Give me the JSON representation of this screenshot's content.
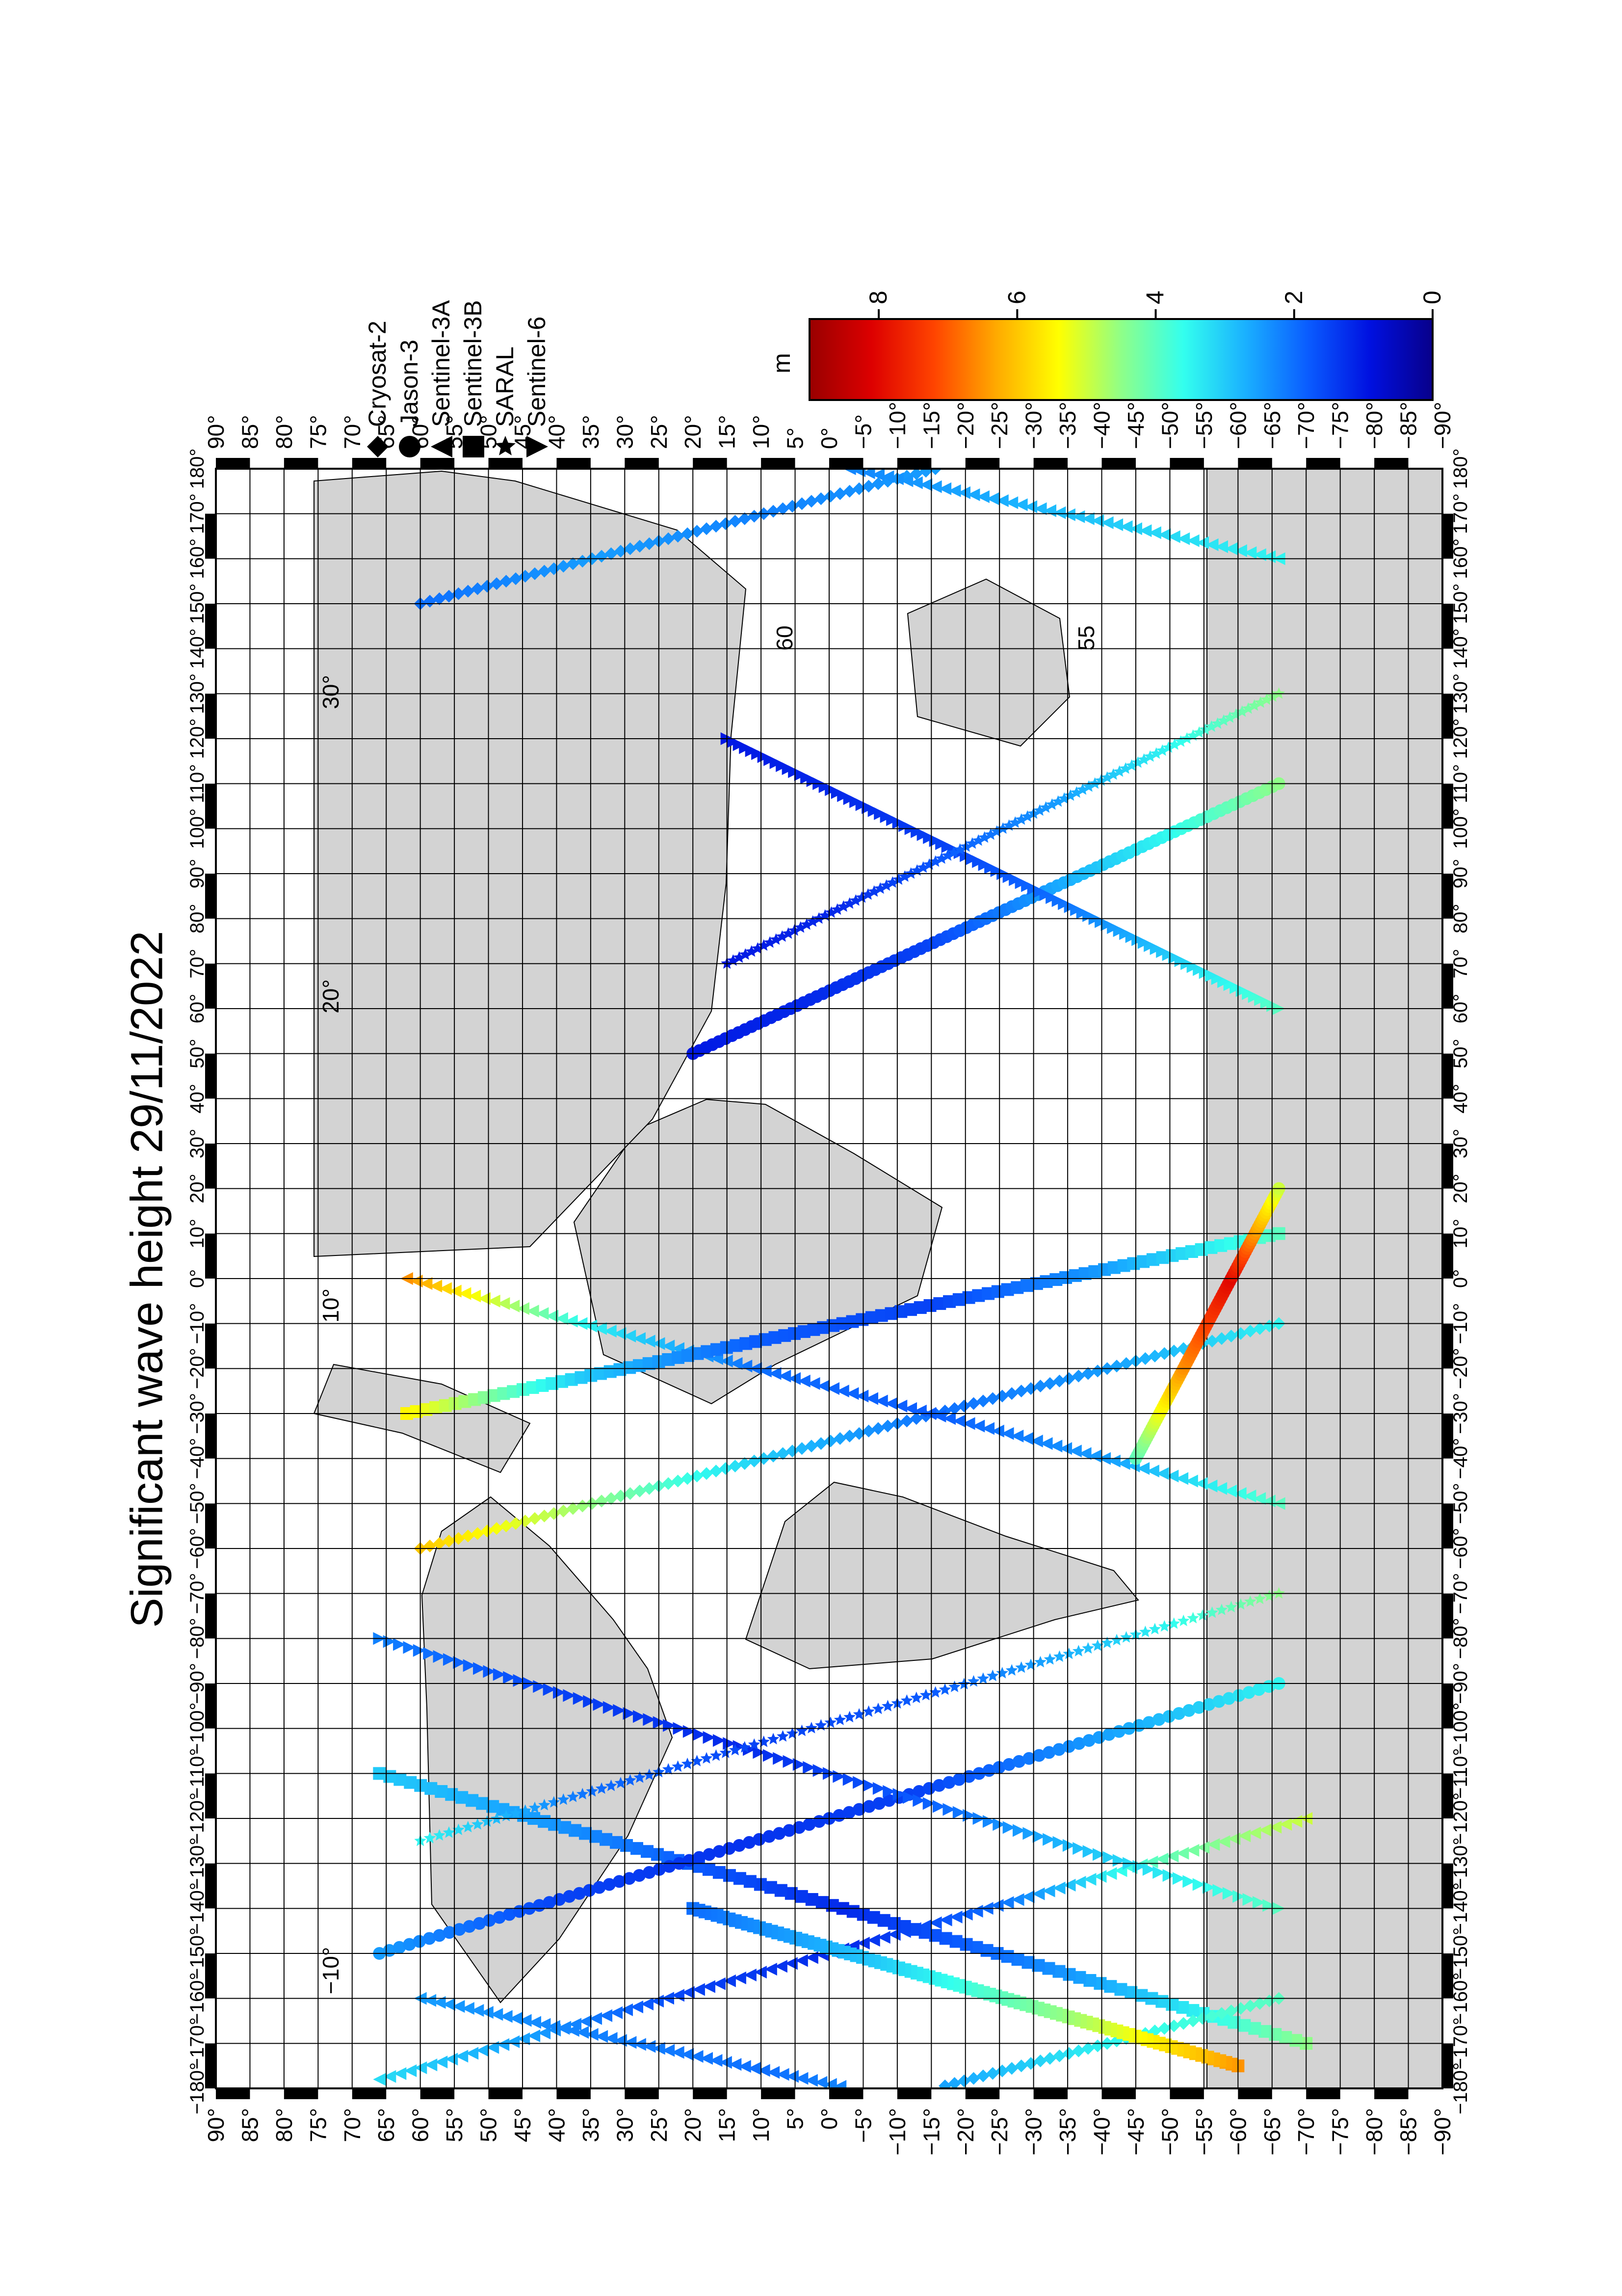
{
  "title": "Significant wave height 29/11/2022",
  "colorbar": {
    "unit": "m",
    "ticks": [
      "0",
      "2",
      "4",
      "6",
      "8"
    ],
    "range": [
      0,
      9
    ],
    "stops": [
      "#08008a",
      "#0010e0",
      "#0a5cff",
      "#1ab0ff",
      "#33ffee",
      "#8fff88",
      "#ffff00",
      "#ffaa00",
      "#ff4400",
      "#dd0000",
      "#990000"
    ]
  },
  "legend": [
    {
      "label": "Cryosat-2",
      "marker": "diamond"
    },
    {
      "label": "Jason-3",
      "marker": "circle"
    },
    {
      "label": "Sentinel-3A",
      "marker": "triangle-up"
    },
    {
      "label": "Sentinel-3B",
      "marker": "square"
    },
    {
      "label": "SARAL",
      "marker": "star"
    },
    {
      "label": "Sentinel-6",
      "marker": "triangle-down"
    }
  ],
  "latitude_labels_left": [
    "90°",
    "85°",
    "80°",
    "75°",
    "70°",
    "65°",
    "60°",
    "55°",
    "50°",
    "45°",
    "40°",
    "35°",
    "30°",
    "25°",
    "20°",
    "15°",
    "10°",
    "5°",
    "0°",
    "−5°",
    "−10°",
    "−15°",
    "−20°",
    "−25°",
    "−30°",
    "−35°",
    "−40°",
    "−45°",
    "−50°",
    "−55°",
    "−60°",
    "−65°",
    "−70°",
    "−75°",
    "−80°",
    "−85°",
    "−90°"
  ],
  "latitude_labels_right": [
    "90°",
    "85°",
    "80°",
    "75°",
    "70°",
    "65°",
    "60°",
    "55°",
    "50°",
    "45°",
    "40°",
    "35°",
    "30°",
    "25°",
    "20°",
    "15°",
    "10°",
    "5°",
    "0°",
    "−5°",
    "−10°",
    "−15°",
    "−20°",
    "−25°",
    "−30°",
    "−35°",
    "−40°",
    "−45°",
    "−50°",
    "−55°",
    "−60°",
    "−65°",
    "−70°",
    "−75°",
    "−80°",
    "−85°",
    "−90°"
  ],
  "longitude_labels": [
    "−180°",
    "−170°",
    "−160°",
    "−150°",
    "−140°",
    "−130°",
    "−120°",
    "−110°",
    "−100°",
    "−90°",
    "−80°",
    "−70°",
    "−60°",
    "−50°",
    "−40°",
    "−30°",
    "−20°",
    "−10°",
    "0°",
    "10°",
    "20°",
    "30°",
    "40°",
    "50°",
    "60°",
    "70°",
    "80°",
    "90°",
    "100°",
    "110°",
    "120°",
    "130°",
    "140°",
    "150°",
    "160°",
    "170°",
    "180°"
  ],
  "map_annotations": [
    "−10°",
    "10°",
    "20°",
    "30°",
    "60",
    "55"
  ],
  "tracks": [
    {
      "satellite": "Sentinel-3A",
      "lon": [
        -178,
        -120
      ],
      "lat": [
        66,
        -70
      ],
      "swh": [
        3.2,
        2.5,
        1.5,
        1.2,
        2.0,
        4.0,
        5.0
      ]
    },
    {
      "satellite": "Sentinel-3B",
      "lon": [
        -170,
        -110
      ],
      "lat": [
        -70,
        66
      ],
      "swh": [
        4.5,
        3.0,
        2.0,
        1.2,
        1.8,
        2.5,
        3.0
      ]
    },
    {
      "satellite": "Jason-3",
      "lon": [
        -150,
        -90
      ],
      "lat": [
        66,
        -66
      ],
      "swh": [
        2.5,
        1.5,
        1.3,
        1.5,
        2.5,
        3.5
      ]
    },
    {
      "satellite": "Sentinel-6",
      "lon": [
        -140,
        -80
      ],
      "lat": [
        -66,
        66
      ],
      "swh": [
        4.0,
        3.0,
        1.8,
        1.2,
        1.5,
        2.2
      ]
    },
    {
      "satellite": "SARAL",
      "lon": [
        -125,
        -70
      ],
      "lat": [
        60,
        -66
      ],
      "swh": [
        3.5,
        2.0,
        1.5,
        1.8,
        3.0,
        4.5
      ]
    },
    {
      "satellite": "Cryosat-2",
      "lon": [
        -60,
        -10
      ],
      "lat": [
        60,
        -66
      ],
      "swh": [
        6.0,
        4.5,
        3.0,
        2.0,
        2.5,
        3.5
      ]
    },
    {
      "satellite": "Sentinel-3A",
      "lon": [
        -50,
        0
      ],
      "lat": [
        -66,
        62
      ],
      "swh": [
        4.0,
        2.5,
        1.8,
        2.0,
        3.5,
        6.5
      ]
    },
    {
      "satellite": "Sentinel-3B",
      "lon": [
        -30,
        10
      ],
      "lat": [
        62,
        -66
      ],
      "swh": [
        5.5,
        3.0,
        1.8,
        1.5,
        2.5,
        4.0
      ]
    },
    {
      "satellite": "Jason-3",
      "lon": [
        50,
        110
      ],
      "lat": [
        20,
        -66
      ],
      "swh": [
        1.0,
        1.2,
        1.5,
        2.5,
        3.5,
        4.5
      ]
    },
    {
      "satellite": "Sentinel-6",
      "lon": [
        60,
        120
      ],
      "lat": [
        -66,
        15
      ],
      "swh": [
        4.0,
        3.0,
        2.0,
        1.5,
        1.2,
        1.0
      ]
    },
    {
      "satellite": "SARAL",
      "lon": [
        70,
        130
      ],
      "lat": [
        15,
        -66
      ],
      "swh": [
        1.0,
        1.2,
        1.8,
        2.5,
        3.5,
        4.5
      ]
    },
    {
      "satellite": "Cryosat-2",
      "lon": [
        150,
        200
      ],
      "lat": [
        60,
        -66
      ],
      "swh": [
        2.0,
        2.5,
        2.2,
        2.5,
        3.5,
        4.0
      ]
    },
    {
      "satellite": "Sentinel-3A",
      "lon": [
        160,
        200
      ],
      "lat": [
        -66,
        60
      ],
      "swh": [
        3.5,
        3.0,
        2.5,
        2.0,
        2.2,
        2.5
      ]
    },
    {
      "satellite": "Sentinel-3B",
      "lon": [
        -175,
        -140
      ],
      "lat": [
        -60,
        20
      ],
      "swh": [
        6.5,
        4.5,
        3.0,
        2.0
      ]
    },
    {
      "satellite": "Jason-3",
      "lon": [
        -40,
        20
      ],
      "lat": [
        -45,
        -66
      ],
      "swh": [
        4.0,
        6.5,
        8.0,
        5.0
      ]
    }
  ]
}
